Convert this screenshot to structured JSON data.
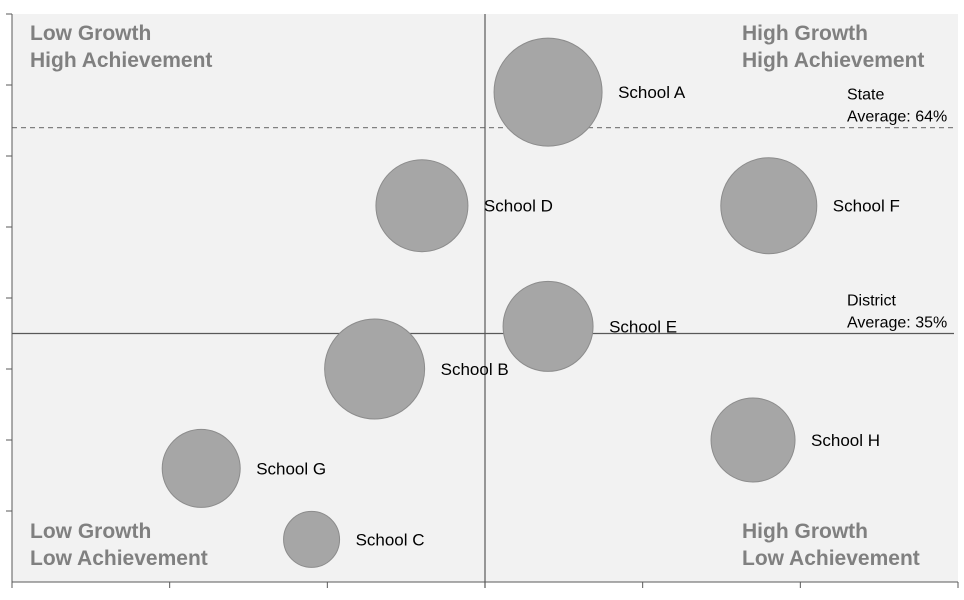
{
  "chart_data": {
    "type": "scatter",
    "subtype": "bubble",
    "title": "",
    "xlabel": "",
    "ylabel": "",
    "x_axis": {
      "label": "",
      "range": [
        0,
        6
      ],
      "tick_labels_shown": false,
      "tick_count": 6
    },
    "y_axis": {
      "label": "",
      "range": [
        0,
        8
      ],
      "tick_labels_shown": false,
      "tick_count": 8
    },
    "grid": false,
    "quadrant_labels": {
      "top_left": [
        "Low Growth",
        "High Achievement"
      ],
      "top_right": [
        "High Growth",
        "High Achievement"
      ],
      "bottom_left": [
        "Low Growth",
        "Low Achievement"
      ],
      "bottom_right": [
        "High Growth",
        "Low Achievement"
      ]
    },
    "vertical_divider": {
      "x": 3.0
    },
    "reference_lines": [
      {
        "id": "state",
        "y": 6.4,
        "style": "dashed",
        "label_lines": [
          "State",
          "Average: 64%"
        ]
      },
      {
        "id": "district",
        "y": 3.5,
        "style": "solid",
        "label_lines": [
          "District",
          "Average: 35%"
        ]
      }
    ],
    "points": [
      {
        "label": "School A",
        "x": 3.4,
        "y": 6.9,
        "size": 54
      },
      {
        "label": "School B",
        "x": 2.3,
        "y": 3.0,
        "size": 50
      },
      {
        "label": "School C",
        "x": 1.9,
        "y": 0.6,
        "size": 28
      },
      {
        "label": "School D",
        "x": 2.6,
        "y": 5.3,
        "size": 46
      },
      {
        "label": "School E",
        "x": 3.4,
        "y": 3.6,
        "size": 45
      },
      {
        "label": "School F",
        "x": 4.8,
        "y": 5.3,
        "size": 48
      },
      {
        "label": "School G",
        "x": 1.2,
        "y": 1.6,
        "size": 39
      },
      {
        "label": "School H",
        "x": 4.7,
        "y": 2.0,
        "size": 42
      }
    ],
    "colors": {
      "plot_background": "#f2f2f2",
      "bubble_fill": "#a6a6a6",
      "bubble_stroke": "#8c8c8c",
      "quadrant_text": "#808080",
      "axis": "#595959",
      "divider": "#595959",
      "state_line": "#808080",
      "district_line": "#595959"
    }
  }
}
